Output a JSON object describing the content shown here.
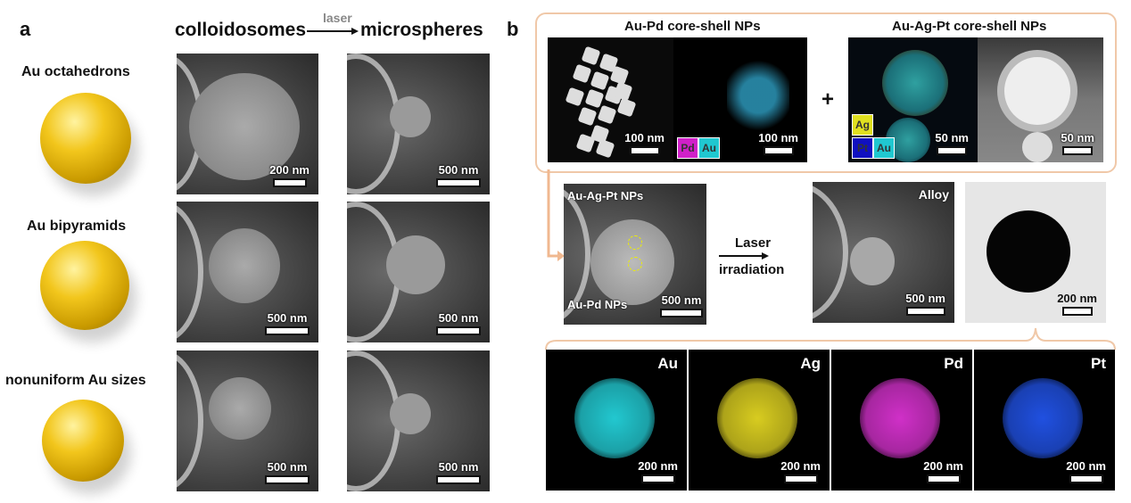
{
  "panel_a": {
    "letter": "a",
    "col1": "colloidosomes",
    "arrow_label": "laser",
    "col2": "microspheres",
    "rows": [
      {
        "label": "Au octahedrons",
        "scale1": "200 nm",
        "scale2": "500 nm"
      },
      {
        "label": "Au bipyramids",
        "scale1": "500 nm",
        "scale2": "500 nm"
      },
      {
        "label": "nonuniform Au sizes",
        "scale1": "500 nm",
        "scale2": "500 nm"
      }
    ]
  },
  "panel_b": {
    "letter": "b",
    "aupd": {
      "title": "Au-Pd core-shell NPs",
      "scale_left": "100 nm",
      "scale_right": "100 nm",
      "tags": [
        "Pd",
        "Au"
      ]
    },
    "plus": "+",
    "auagpt": {
      "title": "Au-Ag-Pt core-shell NPs",
      "scale_left": "50 nm",
      "scale_right": "50 nm",
      "tags": [
        "Ag",
        "Pt",
        "Au"
      ]
    },
    "mixed": {
      "label_top": "Au-Ag-Pt NPs",
      "label_bottom": "Au-Pd NPs",
      "scale": "500 nm"
    },
    "process": {
      "line1": "Laser",
      "line2": "irradiation"
    },
    "alloy": {
      "label": "Alloy",
      "scale": "500 nm"
    },
    "tem": {
      "scale": "200 nm"
    },
    "maps": [
      {
        "element": "Au",
        "color": "#22c8d0",
        "scale": "200 nm"
      },
      {
        "element": "Ag",
        "color": "#d8cc20",
        "scale": "200 nm"
      },
      {
        "element": "Pd",
        "color": "#d030c8",
        "scale": "200 nm"
      },
      {
        "element": "Pt",
        "color": "#2050e0",
        "scale": "200 nm"
      }
    ]
  },
  "colors": {
    "frame": "#f0c8a8",
    "tag_pd": "#d020c8",
    "tag_au": "#20c8d0",
    "tag_ag": "#e0e020",
    "tag_pt": "#1010c0"
  }
}
